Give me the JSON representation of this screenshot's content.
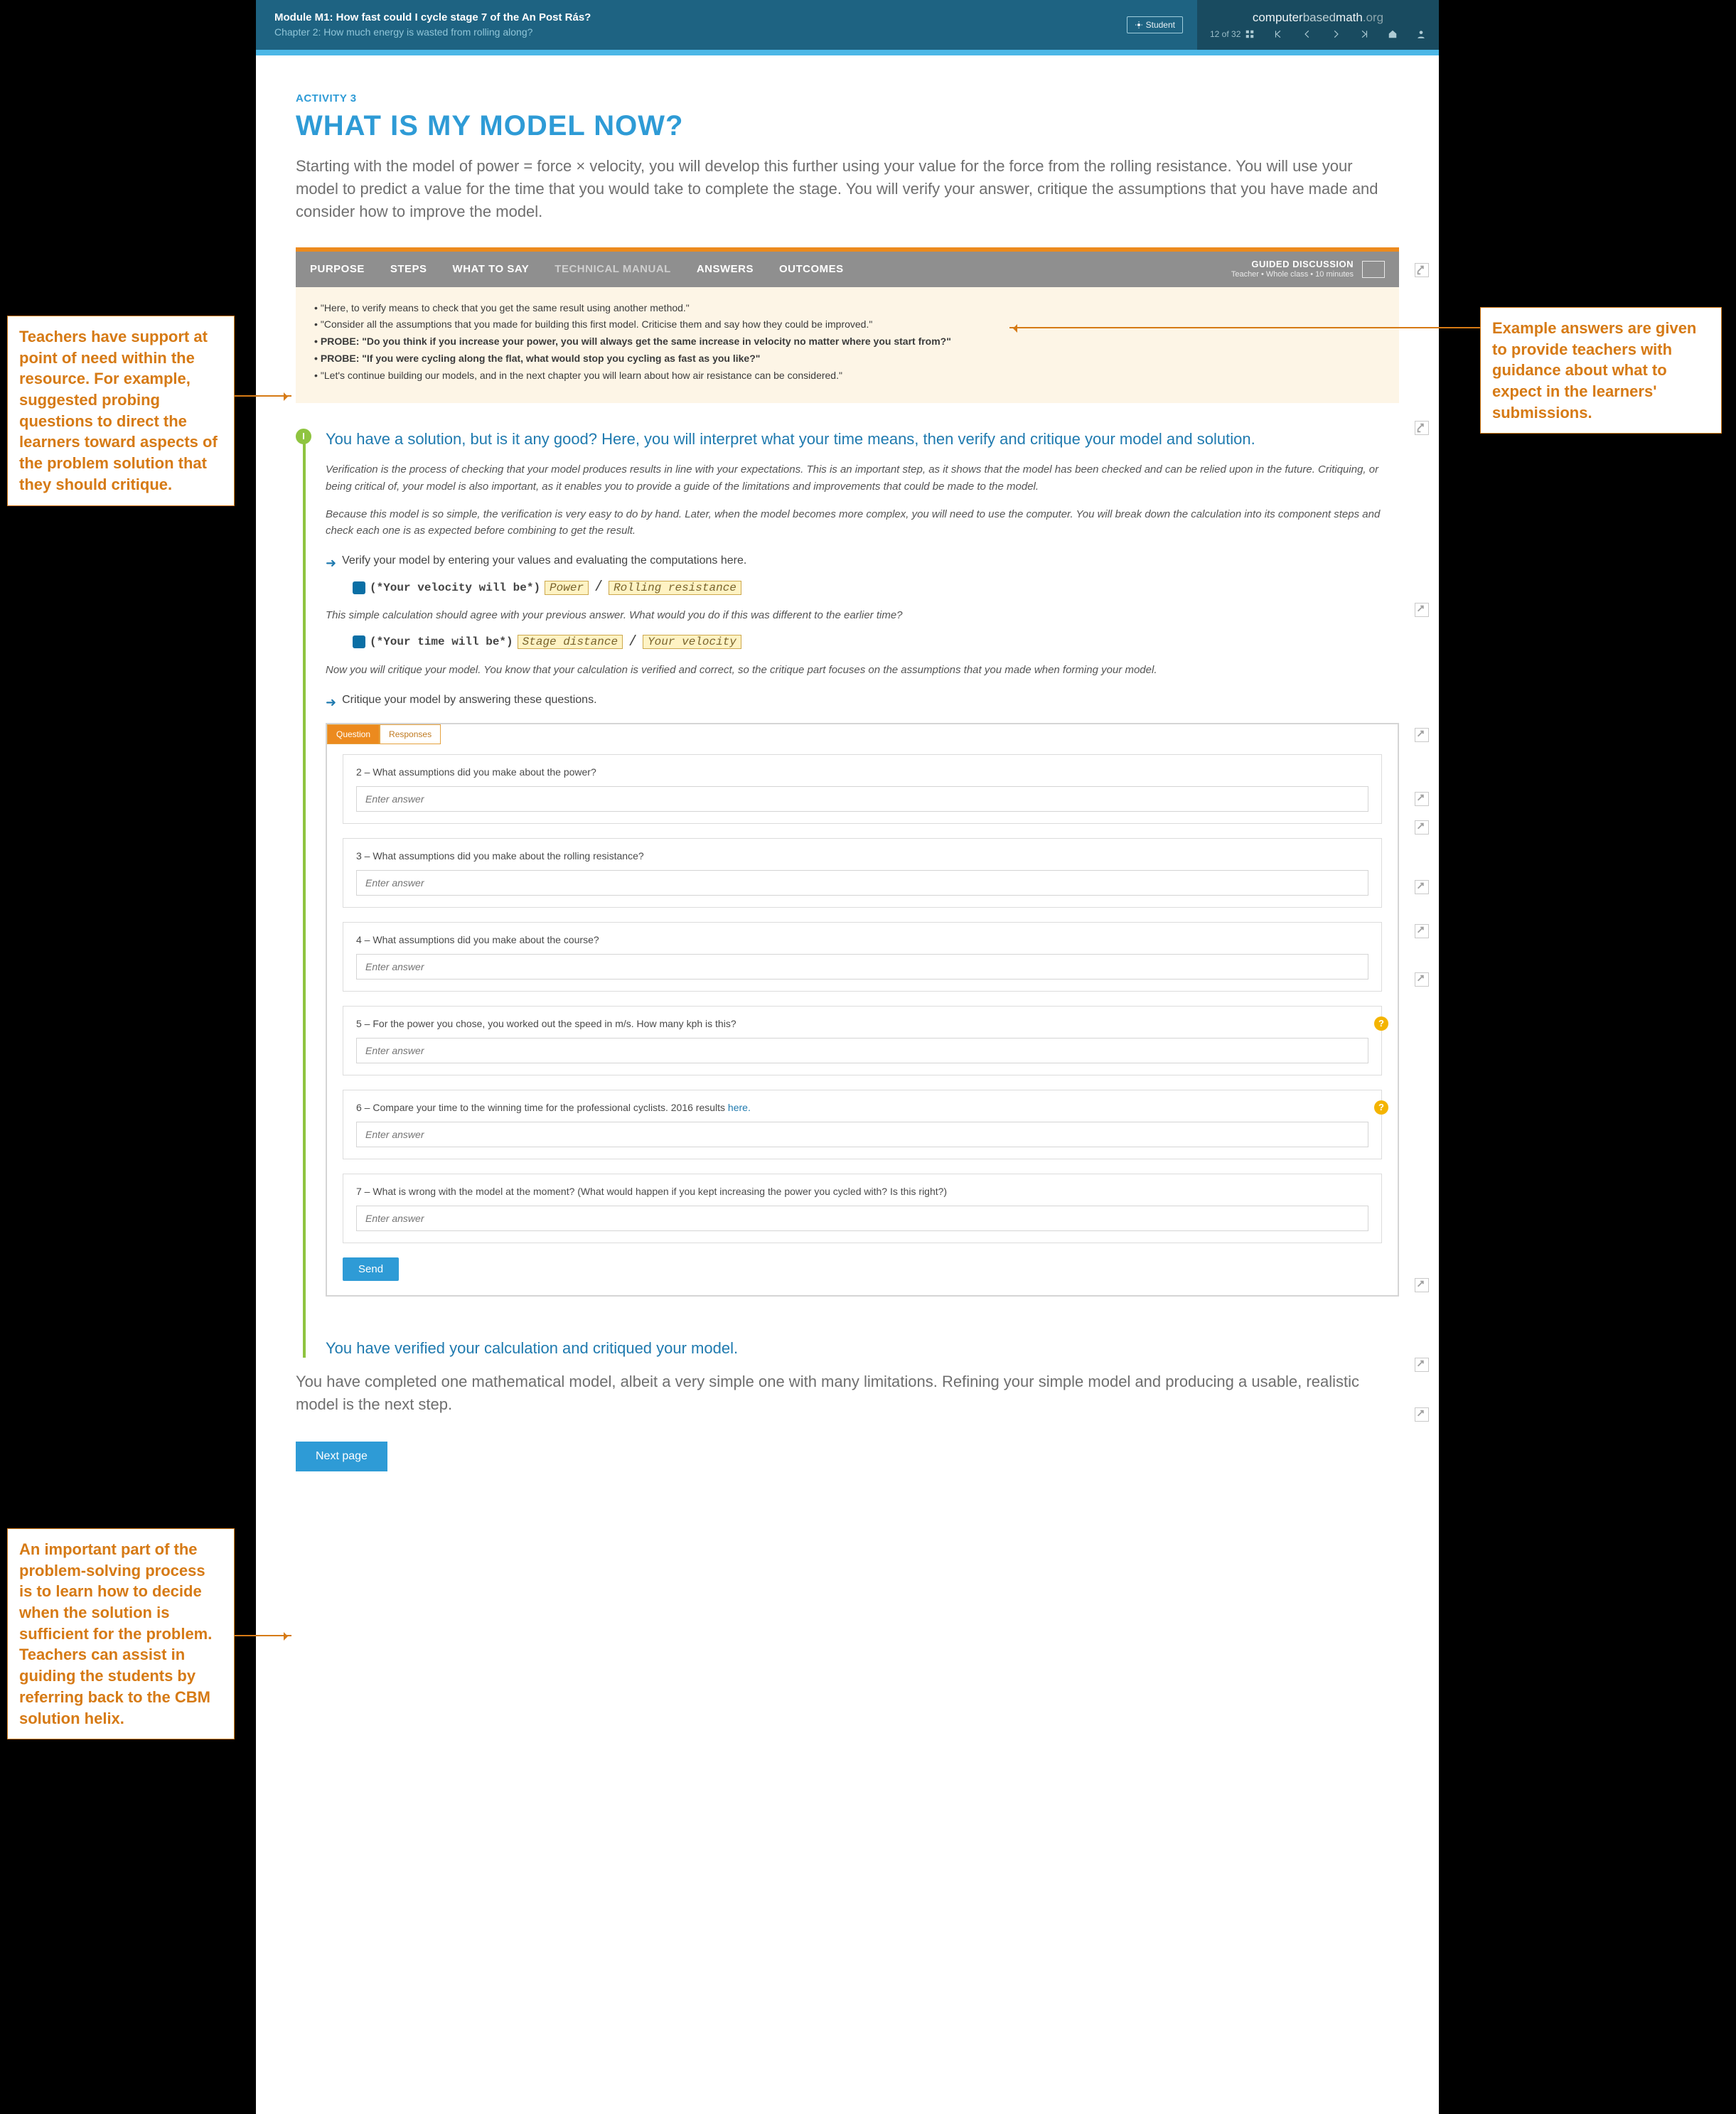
{
  "header": {
    "module": "Module M1: How fast could I cycle stage 7 of the An Post Rás?",
    "chapter": "Chapter 2: How much energy is wasted from rolling along?",
    "student_badge": "Student",
    "brand_l1": "computer",
    "brand_l2": "based",
    "brand_l3": "math",
    "brand_l4": ".org",
    "page_counter": "12 of 32"
  },
  "activity_label": "ACTIVITY 3",
  "title": "WHAT IS MY MODEL NOW?",
  "lead": "Starting with the model of power = force × velocity, you will develop this further using your value for the force from the rolling resistance. You will use your model to predict a value for the time that you would take to complete the stage. You will verify your answer, critique the assumptions that you have made and consider how to improve the model.",
  "panel": {
    "tabs": [
      "PURPOSE",
      "STEPS",
      "WHAT TO SAY",
      "TECHNICAL MANUAL",
      "ANSWERS",
      "OUTCOMES"
    ],
    "active_tab_index": 2,
    "dim_tab_index": 3,
    "guided_t1": "GUIDED DISCUSSION",
    "guided_t2": "Teacher  •  Whole class  •  10 minutes",
    "bullets": [
      "\"Here, to verify means to check that you get the same result using another method.\"",
      "\"Consider all the assumptions that you made for building this first model. Criticise them and say how they could be improved.\"",
      "PROBE: \"Do you think if you increase your power, you will always get the same increase in velocity no matter where you start from?\"",
      "PROBE: \"If you were cycling along the flat, what would stop you cycling as fast as you like?\"",
      "\"Let's continue building our models, and in the next chapter you will learn about how air resistance can be considered.\""
    ],
    "probe_indexes": [
      2,
      3
    ]
  },
  "timeline": {
    "dot_label": "I",
    "heading": "You have a solution, but is it any good? Here, you will interpret what your time means, then verify and critique your model and solution.",
    "para1": "Verification is the process of checking that your model produces results in line with your expectations. This is an important step, as it shows that the model has been checked and can be relied upon in the future. Critiquing, or being critical of, your model is also important, as it enables you to provide a guide of the limitations and improvements that could be made to the model.",
    "para2": "Because this model is so simple, the verification is very easy to do by hand. Later, when the model becomes more complex, you will need to use the computer. You will break down the calculation into its component steps and check each one is as expected before combining to get the result.",
    "step1": "Verify your model by entering your values and evaluating the computations here.",
    "code1_prefix": "(*Your velocity will be*)",
    "code1_tok1": "Power",
    "code1_tok2": "Rolling resistance",
    "mid_it": "This simple calculation should agree with your previous answer. What would you do if this was different to the earlier time?",
    "code2_prefix": "(*Your time will be*)",
    "code2_tok1": "Stage distance",
    "code2_tok2": "Your velocity",
    "para3": "Now you will critique your model. You know that your calculation is verified and correct, so the critique part focuses on the assumptions that you made when forming your model.",
    "step2": "Critique your model by answering these questions."
  },
  "qbox": {
    "tab_active": "Question",
    "tab_inactive": "Responses",
    "placeholder": "Enter answer",
    "items": [
      {
        "n": "2",
        "text": "What assumptions did you make about the power?",
        "hint": false
      },
      {
        "n": "3",
        "text": "What assumptions did you make about the rolling resistance?",
        "hint": false
      },
      {
        "n": "4",
        "text": "What assumptions did you make about the course?",
        "hint": false
      },
      {
        "n": "5",
        "text": "For the power you chose, you worked out the speed in m/s. How many kph is this?",
        "hint": true
      },
      {
        "n": "6",
        "text": "Compare your time to the winning time for the professional cyclists. 2016 results ",
        "link": "here.",
        "hint": true
      },
      {
        "n": "7",
        "text": "What is wrong with the model at the moment? (What would happen if you kept increasing the power you cycled with? Is this right?)",
        "hint": false
      }
    ],
    "send": "Send"
  },
  "verify_heading": "You have verified your calculation and critiqued your model.",
  "final_para": "You have completed one mathematical model, albeit a very simple one with many limitations. Refining your simple model and producing a usable, realistic model is the next step.",
  "next_button": "Next page",
  "callouts": {
    "left_top": "Teachers have support at point of need within the resource. For example, suggested probing questions to direct the learners toward aspects of the problem solution that they should critique.",
    "left_bottom": "An important part of the problem-solving process is to learn how to decide when the solution is sufficient for the problem. Teachers can assist in guiding the students by referring back to the CBM solution helix.",
    "right_top": "Example answers are given to provide teachers with guidance about what to expect in the learners' submissions."
  },
  "colors": {
    "orange": "#d67a15",
    "blue": "#2e9bd6",
    "header": "#1e6382"
  }
}
